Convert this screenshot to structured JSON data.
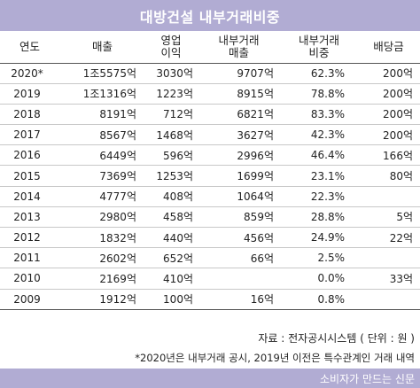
{
  "title": "대방건설 내부거래비중",
  "columns": [
    {
      "label": "연도"
    },
    {
      "label": "매출"
    },
    {
      "label": "영업\n이익"
    },
    {
      "label": "내부거래\n매출"
    },
    {
      "label": "내부거래\n비중"
    },
    {
      "label": "배당금"
    }
  ],
  "rows": [
    {
      "year": "2020*",
      "sales": "1조5575억",
      "op_income": "3030억",
      "internal_sales": "9707억",
      "ratio": "62.3%",
      "dividend": "200억"
    },
    {
      "year": "2019",
      "sales": "1조1316억",
      "op_income": "1223억",
      "internal_sales": "8915억",
      "ratio": "78.8%",
      "dividend": "200억"
    },
    {
      "year": "2018",
      "sales": "8191억",
      "op_income": "712억",
      "internal_sales": "6821억",
      "ratio": "83.3%",
      "dividend": "200억"
    },
    {
      "year": "2017",
      "sales": "8567억",
      "op_income": "1468억",
      "internal_sales": "3627억",
      "ratio": "42.3%",
      "dividend": "200억"
    },
    {
      "year": "2016",
      "sales": "6449억",
      "op_income": "596억",
      "internal_sales": "2996억",
      "ratio": "46.4%",
      "dividend": "166억"
    },
    {
      "year": "2015",
      "sales": "7369억",
      "op_income": "1253억",
      "internal_sales": "1699억",
      "ratio": "23.1%",
      "dividend": "80억"
    },
    {
      "year": "2014",
      "sales": "4777억",
      "op_income": "408억",
      "internal_sales": "1064억",
      "ratio": "22.3%",
      "dividend": ""
    },
    {
      "year": "2013",
      "sales": "2980억",
      "op_income": "458억",
      "internal_sales": "859억",
      "ratio": "28.8%",
      "dividend": "5억"
    },
    {
      "year": "2012",
      "sales": "1832억",
      "op_income": "440억",
      "internal_sales": "456억",
      "ratio": "24.9%",
      "dividend": "22억"
    },
    {
      "year": "2011",
      "sales": "2602억",
      "op_income": "652억",
      "internal_sales": "66억",
      "ratio": "2.5%",
      "dividend": ""
    },
    {
      "year": "2010",
      "sales": "2169억",
      "op_income": "410억",
      "internal_sales": "",
      "ratio": "0.0%",
      "dividend": "33억"
    },
    {
      "year": "2009",
      "sales": "1912억",
      "op_income": "100억",
      "internal_sales": "16억",
      "ratio": "0.8%",
      "dividend": ""
    }
  ],
  "source": "자료 : 전자공시시스템 ( 단위 : 원 )",
  "note": "*2020년은 내부거래 공시, 2019년 이전은 특수관계인 거래 내역",
  "footer": "소비자가 만드는 신문",
  "colors": {
    "accent": "#b1acd3"
  }
}
